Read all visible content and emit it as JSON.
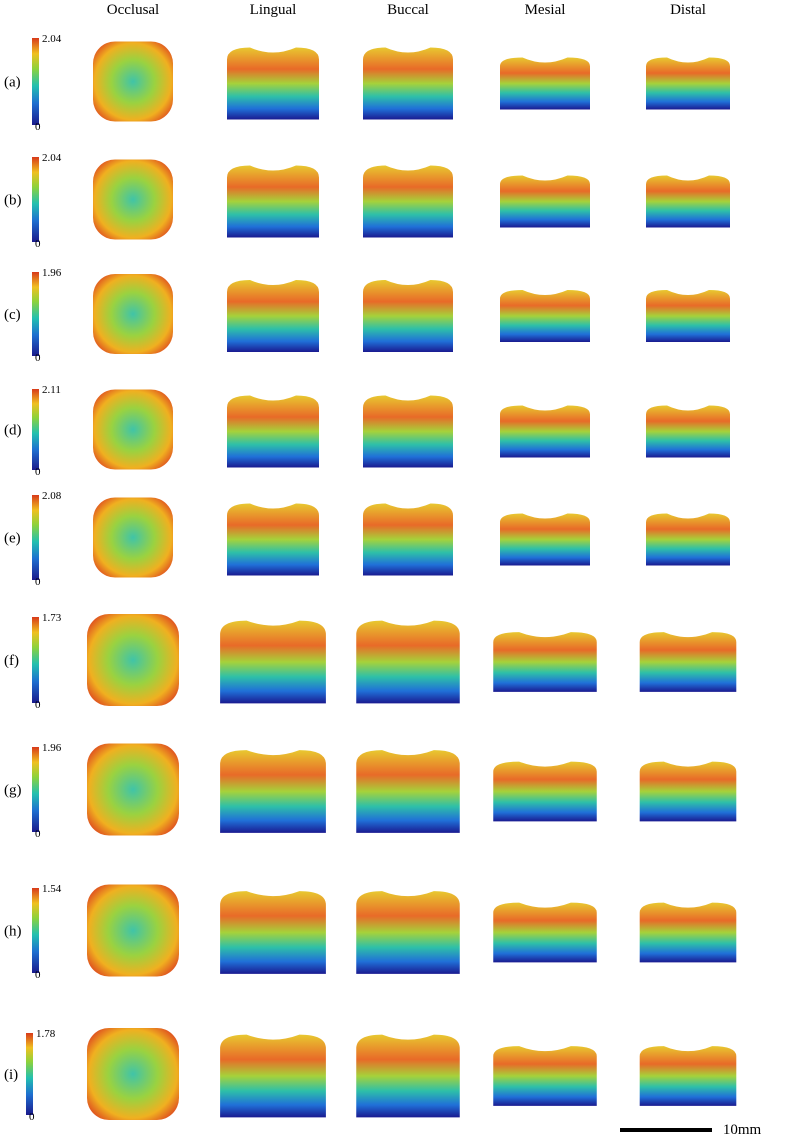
{
  "columns": [
    "Occlusal",
    "Lingual",
    "Buccal",
    "Mesial",
    "Distal"
  ],
  "rows": [
    {
      "label": "(a)",
      "colorbar_max": 2.04,
      "colorbar_min": 0
    },
    {
      "label": "(b)",
      "colorbar_max": 2.04,
      "colorbar_min": 0
    },
    {
      "label": "(c)",
      "colorbar_max": 1.96,
      "colorbar_min": 0
    },
    {
      "label": "(d)",
      "colorbar_max": 2.11,
      "colorbar_min": 0
    },
    {
      "label": "(e)",
      "colorbar_max": 2.08,
      "colorbar_min": 0
    },
    {
      "label": "(f)",
      "colorbar_max": 1.73,
      "colorbar_min": 0
    },
    {
      "label": "(g)",
      "colorbar_max": 1.96,
      "colorbar_min": 0
    },
    {
      "label": "(h)",
      "colorbar_max": 1.54,
      "colorbar_min": 0
    },
    {
      "label": "(i)",
      "colorbar_max": 1.78,
      "colorbar_min": 0
    }
  ],
  "scale_bar": "10mm"
}
